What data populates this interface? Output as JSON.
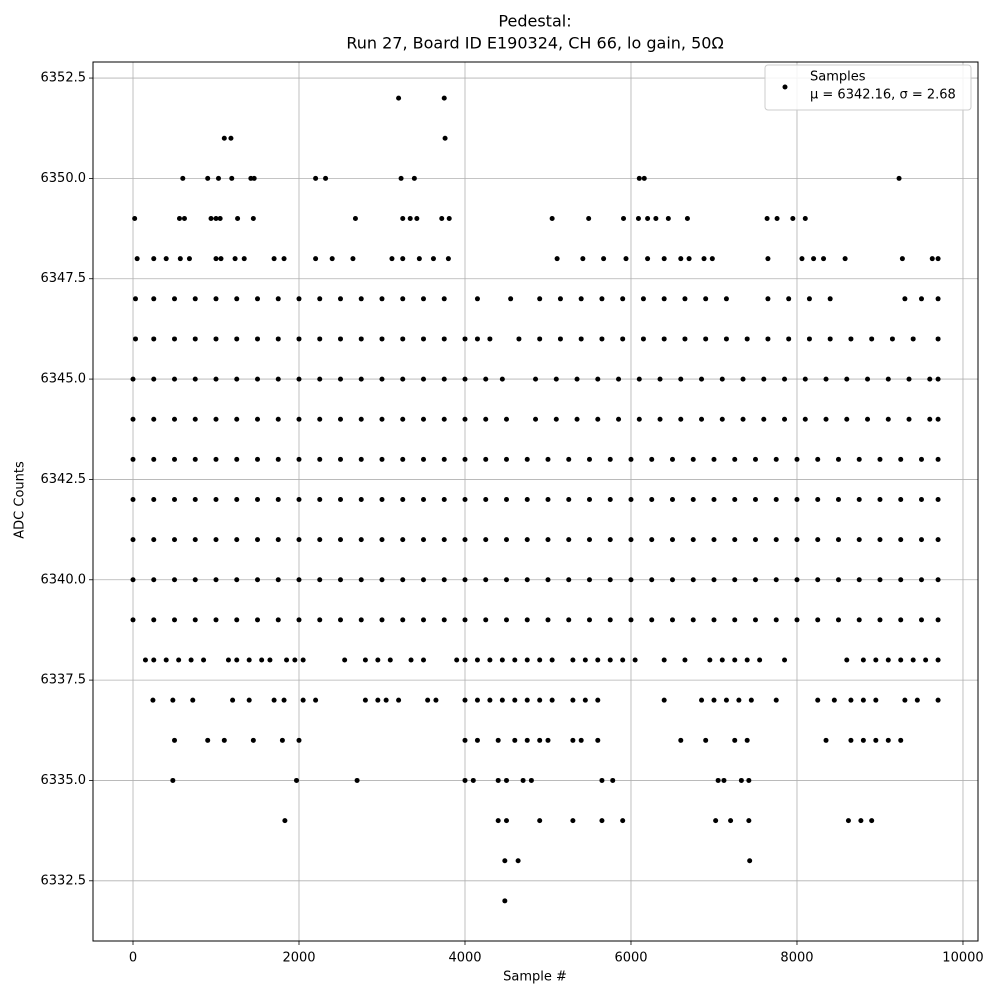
{
  "chart_data": {
    "type": "scatter",
    "title": "Pedestal:",
    "subtitle": "Run 27, Board ID E190324, CH 66, lo gain, 50Ω",
    "x_label": "Sample #",
    "y_label": "ADC Counts",
    "legend_note": "μ = 6342.16, σ = 2.68",
    "legend_position": "upper right",
    "grid": true,
    "xlim": [
      -482,
      10181
    ],
    "ylim": [
      6331.0,
      6352.9
    ],
    "xticks": [
      0,
      2000,
      4000,
      6000,
      8000,
      10000
    ],
    "yticks": [
      6332.5,
      {
        "value": 6335,
        "label": "6335.0"
      },
      6337.5,
      {
        "value": 6340,
        "label": "6340.0"
      },
      6342.5,
      {
        "value": 6345,
        "label": "6345.0"
      },
      6347.5,
      {
        "value": 6350,
        "label": "6350.0"
      },
      6352.5
    ],
    "series": [
      {
        "name": "Samples",
        "color": "#000000",
        "x": [
          3200,
          3750,
          1100,
          1180,
          3760,
          600,
          900,
          1030,
          1190,
          1420,
          1460,
          2200,
          2320,
          3230,
          3390,
          6100,
          6160,
          9230,
          20,
          560,
          620,
          940,
          1000,
          1050,
          1260,
          1450,
          2680,
          3250,
          3340,
          3420,
          3720,
          3810,
          5050,
          5490,
          5910,
          6090,
          6200,
          6300,
          6450,
          6680,
          7640,
          7760,
          7950,
          8100,
          50,
          250,
          400,
          570,
          680,
          1000,
          1060,
          1230,
          1340,
          1700,
          1820,
          2200,
          2400,
          2650,
          3120,
          3250,
          3450,
          3620,
          3800,
          5110,
          5420,
          5670,
          5940,
          6200,
          6400,
          6600,
          6700,
          6880,
          6980,
          7650,
          8060,
          8200,
          8320,
          8580,
          9270,
          9630,
          9700,
          30,
          250,
          500,
          750,
          1000,
          1250,
          1500,
          1750,
          2000,
          2250,
          2500,
          2750,
          3000,
          3250,
          3500,
          3750,
          4150,
          4550,
          4900,
          5150,
          5400,
          5650,
          5900,
          6150,
          6400,
          6650,
          6900,
          7150,
          7650,
          7900,
          8150,
          8400,
          9300,
          9500,
          9700,
          30,
          250,
          500,
          750,
          1000,
          1250,
          1500,
          1750,
          2000,
          2250,
          2500,
          2750,
          3000,
          3250,
          3500,
          3750,
          4000,
          4150,
          4300,
          4650,
          4900,
          5150,
          5400,
          5650,
          5900,
          6150,
          6400,
          6650,
          6900,
          7150,
          7400,
          7650,
          7900,
          8150,
          8400,
          8650,
          8900,
          9150,
          9400,
          9700,
          0,
          250,
          500,
          750,
          1000,
          1250,
          1500,
          1750,
          2000,
          2250,
          2500,
          2750,
          3000,
          3250,
          3500,
          3750,
          4000,
          4250,
          4450,
          4850,
          5100,
          5350,
          5600,
          5850,
          6100,
          6350,
          6600,
          6850,
          7100,
          7350,
          7600,
          7850,
          8100,
          8350,
          8600,
          8850,
          9100,
          9350,
          9600,
          9700,
          0,
          250,
          500,
          750,
          1000,
          1250,
          1500,
          1750,
          2000,
          2250,
          2500,
          2750,
          3000,
          3250,
          3500,
          3750,
          4000,
          4250,
          4500,
          4850,
          5100,
          5350,
          5600,
          5850,
          6100,
          6350,
          6600,
          6850,
          7100,
          7350,
          7600,
          7850,
          8100,
          8350,
          8600,
          8850,
          9100,
          9350,
          9600,
          9700,
          0,
          250,
          500,
          750,
          1000,
          1250,
          1500,
          1750,
          2000,
          2250,
          2500,
          2750,
          3000,
          3250,
          3500,
          3750,
          4000,
          4250,
          4500,
          4750,
          5000,
          5250,
          5500,
          5750,
          6000,
          6250,
          6500,
          6750,
          7000,
          7250,
          7500,
          7750,
          8000,
          8250,
          8500,
          8750,
          9000,
          9250,
          9500,
          9700,
          0,
          250,
          500,
          750,
          1000,
          1250,
          1500,
          1750,
          2000,
          2250,
          2500,
          2750,
          3000,
          3250,
          3500,
          3750,
          4000,
          4250,
          4500,
          4750,
          5000,
          5250,
          5500,
          5750,
          6000,
          6250,
          6500,
          6750,
          7000,
          7250,
          7500,
          7750,
          8000,
          8250,
          8500,
          8750,
          9000,
          9250,
          9500,
          9700,
          0,
          250,
          500,
          750,
          1000,
          1250,
          1500,
          1750,
          2000,
          2250,
          2500,
          2750,
          3000,
          3250,
          3500,
          3750,
          4000,
          4250,
          4500,
          4750,
          5000,
          5250,
          5500,
          5750,
          6000,
          6250,
          6500,
          6750,
          7000,
          7250,
          7500,
          7750,
          8000,
          8250,
          8500,
          8750,
          9000,
          9250,
          9500,
          9700,
          0,
          250,
          500,
          750,
          1000,
          1250,
          1500,
          1750,
          2000,
          2250,
          2500,
          2750,
          3000,
          3250,
          3500,
          3750,
          4000,
          4250,
          4500,
          4750,
          5000,
          5250,
          5500,
          5750,
          6000,
          6250,
          6500,
          6750,
          7000,
          7250,
          7500,
          7750,
          8000,
          8250,
          8500,
          8750,
          9000,
          9250,
          9500,
          9700,
          0,
          250,
          500,
          750,
          1000,
          1250,
          1500,
          1750,
          2000,
          2250,
          2500,
          2750,
          3000,
          3250,
          3500,
          3750,
          4000,
          4250,
          4500,
          4750,
          5000,
          5250,
          5500,
          5750,
          6000,
          6250,
          6500,
          6750,
          7000,
          7250,
          7500,
          7750,
          8000,
          8250,
          8500,
          8750,
          9000,
          9250,
          9500,
          9700,
          150,
          250,
          400,
          550,
          700,
          850,
          1150,
          1250,
          1400,
          1550,
          1650,
          1850,
          1950,
          2050,
          2550,
          2800,
          2950,
          3100,
          3350,
          3500,
          3900,
          4000,
          4150,
          4300,
          4450,
          4600,
          4750,
          4900,
          5050,
          5300,
          5450,
          5600,
          5750,
          5900,
          6050,
          6400,
          6650,
          6950,
          7100,
          7250,
          7400,
          7550,
          7850,
          8600,
          8800,
          8950,
          9100,
          9250,
          9400,
          9550,
          9700,
          240,
          480,
          720,
          1200,
          1400,
          1700,
          1820,
          2050,
          2200,
          2800,
          2950,
          3050,
          3200,
          3550,
          3650,
          4000,
          4150,
          4300,
          4450,
          4600,
          4750,
          4900,
          5050,
          5300,
          5450,
          5600,
          6400,
          6850,
          7000,
          7150,
          7300,
          7450,
          7750,
          8250,
          8450,
          8650,
          8800,
          8950,
          9300,
          9450,
          9700,
          500,
          900,
          1100,
          1450,
          1800,
          2000,
          4000,
          4150,
          4400,
          4600,
          4750,
          4900,
          5000,
          5300,
          5400,
          5600,
          6600,
          6900,
          7250,
          7400,
          8350,
          8650,
          8800,
          8950,
          9100,
          9250,
          480,
          1970,
          2700,
          4000,
          4100,
          4400,
          4500,
          4700,
          4800,
          5650,
          5780,
          7050,
          7120,
          7330,
          7420,
          1830,
          4400,
          4500,
          4900,
          5300,
          5650,
          5900,
          7020,
          7200,
          7420,
          8620,
          8770,
          8900,
          4480,
          4640,
          7430,
          4480
        ],
        "values": [
          6352,
          6352,
          6351,
          6351,
          6351,
          6350,
          6350,
          6350,
          6350,
          6350,
          6350,
          6350,
          6350,
          6350,
          6350,
          6350,
          6350,
          6350,
          6349,
          6349,
          6349,
          6349,
          6349,
          6349,
          6349,
          6349,
          6349,
          6349,
          6349,
          6349,
          6349,
          6349,
          6349,
          6349,
          6349,
          6349,
          6349,
          6349,
          6349,
          6349,
          6349,
          6349,
          6349,
          6349,
          6348,
          6348,
          6348,
          6348,
          6348,
          6348,
          6348,
          6348,
          6348,
          6348,
          6348,
          6348,
          6348,
          6348,
          6348,
          6348,
          6348,
          6348,
          6348,
          6348,
          6348,
          6348,
          6348,
          6348,
          6348,
          6348,
          6348,
          6348,
          6348,
          6348,
          6348,
          6348,
          6348,
          6348,
          6348,
          6348,
          6348,
          6347,
          6347,
          6347,
          6347,
          6347,
          6347,
          6347,
          6347,
          6347,
          6347,
          6347,
          6347,
          6347,
          6347,
          6347,
          6347,
          6347,
          6347,
          6347,
          6347,
          6347,
          6347,
          6347,
          6347,
          6347,
          6347,
          6347,
          6347,
          6347,
          6347,
          6347,
          6347,
          6347,
          6347,
          6347,
          6346,
          6346,
          6346,
          6346,
          6346,
          6346,
          6346,
          6346,
          6346,
          6346,
          6346,
          6346,
          6346,
          6346,
          6346,
          6346,
          6346,
          6346,
          6346,
          6346,
          6346,
          6346,
          6346,
          6346,
          6346,
          6346,
          6346,
          6346,
          6346,
          6346,
          6346,
          6346,
          6346,
          6346,
          6346,
          6346,
          6346,
          6346,
          6346,
          6346,
          6345,
          6345,
          6345,
          6345,
          6345,
          6345,
          6345,
          6345,
          6345,
          6345,
          6345,
          6345,
          6345,
          6345,
          6345,
          6345,
          6345,
          6345,
          6345,
          6345,
          6345,
          6345,
          6345,
          6345,
          6345,
          6345,
          6345,
          6345,
          6345,
          6345,
          6345,
          6345,
          6345,
          6345,
          6345,
          6345,
          6345,
          6345,
          6345,
          6345,
          6344,
          6344,
          6344,
          6344,
          6344,
          6344,
          6344,
          6344,
          6344,
          6344,
          6344,
          6344,
          6344,
          6344,
          6344,
          6344,
          6344,
          6344,
          6344,
          6344,
          6344,
          6344,
          6344,
          6344,
          6344,
          6344,
          6344,
          6344,
          6344,
          6344,
          6344,
          6344,
          6344,
          6344,
          6344,
          6344,
          6344,
          6344,
          6344,
          6344,
          6343,
          6343,
          6343,
          6343,
          6343,
          6343,
          6343,
          6343,
          6343,
          6343,
          6343,
          6343,
          6343,
          6343,
          6343,
          6343,
          6343,
          6343,
          6343,
          6343,
          6343,
          6343,
          6343,
          6343,
          6343,
          6343,
          6343,
          6343,
          6343,
          6343,
          6343,
          6343,
          6343,
          6343,
          6343,
          6343,
          6343,
          6343,
          6343,
          6343,
          6342,
          6342,
          6342,
          6342,
          6342,
          6342,
          6342,
          6342,
          6342,
          6342,
          6342,
          6342,
          6342,
          6342,
          6342,
          6342,
          6342,
          6342,
          6342,
          6342,
          6342,
          6342,
          6342,
          6342,
          6342,
          6342,
          6342,
          6342,
          6342,
          6342,
          6342,
          6342,
          6342,
          6342,
          6342,
          6342,
          6342,
          6342,
          6342,
          6342,
          6341,
          6341,
          6341,
          6341,
          6341,
          6341,
          6341,
          6341,
          6341,
          6341,
          6341,
          6341,
          6341,
          6341,
          6341,
          6341,
          6341,
          6341,
          6341,
          6341,
          6341,
          6341,
          6341,
          6341,
          6341,
          6341,
          6341,
          6341,
          6341,
          6341,
          6341,
          6341,
          6341,
          6341,
          6341,
          6341,
          6341,
          6341,
          6341,
          6341,
          6340,
          6340,
          6340,
          6340,
          6340,
          6340,
          6340,
          6340,
          6340,
          6340,
          6340,
          6340,
          6340,
          6340,
          6340,
          6340,
          6340,
          6340,
          6340,
          6340,
          6340,
          6340,
          6340,
          6340,
          6340,
          6340,
          6340,
          6340,
          6340,
          6340,
          6340,
          6340,
          6340,
          6340,
          6340,
          6340,
          6340,
          6340,
          6340,
          6340,
          6339,
          6339,
          6339,
          6339,
          6339,
          6339,
          6339,
          6339,
          6339,
          6339,
          6339,
          6339,
          6339,
          6339,
          6339,
          6339,
          6339,
          6339,
          6339,
          6339,
          6339,
          6339,
          6339,
          6339,
          6339,
          6339,
          6339,
          6339,
          6339,
          6339,
          6339,
          6339,
          6339,
          6339,
          6339,
          6339,
          6339,
          6339,
          6339,
          6339,
          6338,
          6338,
          6338,
          6338,
          6338,
          6338,
          6338,
          6338,
          6338,
          6338,
          6338,
          6338,
          6338,
          6338,
          6338,
          6338,
          6338,
          6338,
          6338,
          6338,
          6338,
          6338,
          6338,
          6338,
          6338,
          6338,
          6338,
          6338,
          6338,
          6338,
          6338,
          6338,
          6338,
          6338,
          6338,
          6338,
          6338,
          6338,
          6338,
          6338,
          6338,
          6338,
          6338,
          6338,
          6338,
          6338,
          6338,
          6338,
          6338,
          6338,
          6338,
          6337,
          6337,
          6337,
          6337,
          6337,
          6337,
          6337,
          6337,
          6337,
          6337,
          6337,
          6337,
          6337,
          6337,
          6337,
          6337,
          6337,
          6337,
          6337,
          6337,
          6337,
          6337,
          6337,
          6337,
          6337,
          6337,
          6337,
          6337,
          6337,
          6337,
          6337,
          6337,
          6337,
          6337,
          6337,
          6337,
          6337,
          6337,
          6337,
          6337,
          6337,
          6336,
          6336,
          6336,
          6336,
          6336,
          6336,
          6336,
          6336,
          6336,
          6336,
          6336,
          6336,
          6336,
          6336,
          6336,
          6336,
          6336,
          6336,
          6336,
          6336,
          6336,
          6336,
          6336,
          6336,
          6336,
          6336,
          6335,
          6335,
          6335,
          6335,
          6335,
          6335,
          6335,
          6335,
          6335,
          6335,
          6335,
          6335,
          6335,
          6335,
          6335,
          6334,
          6334,
          6334,
          6334,
          6334,
          6334,
          6334,
          6334,
          6334,
          6334,
          6334,
          6334,
          6334,
          6333,
          6333,
          6333,
          6332
        ]
      }
    ]
  }
}
